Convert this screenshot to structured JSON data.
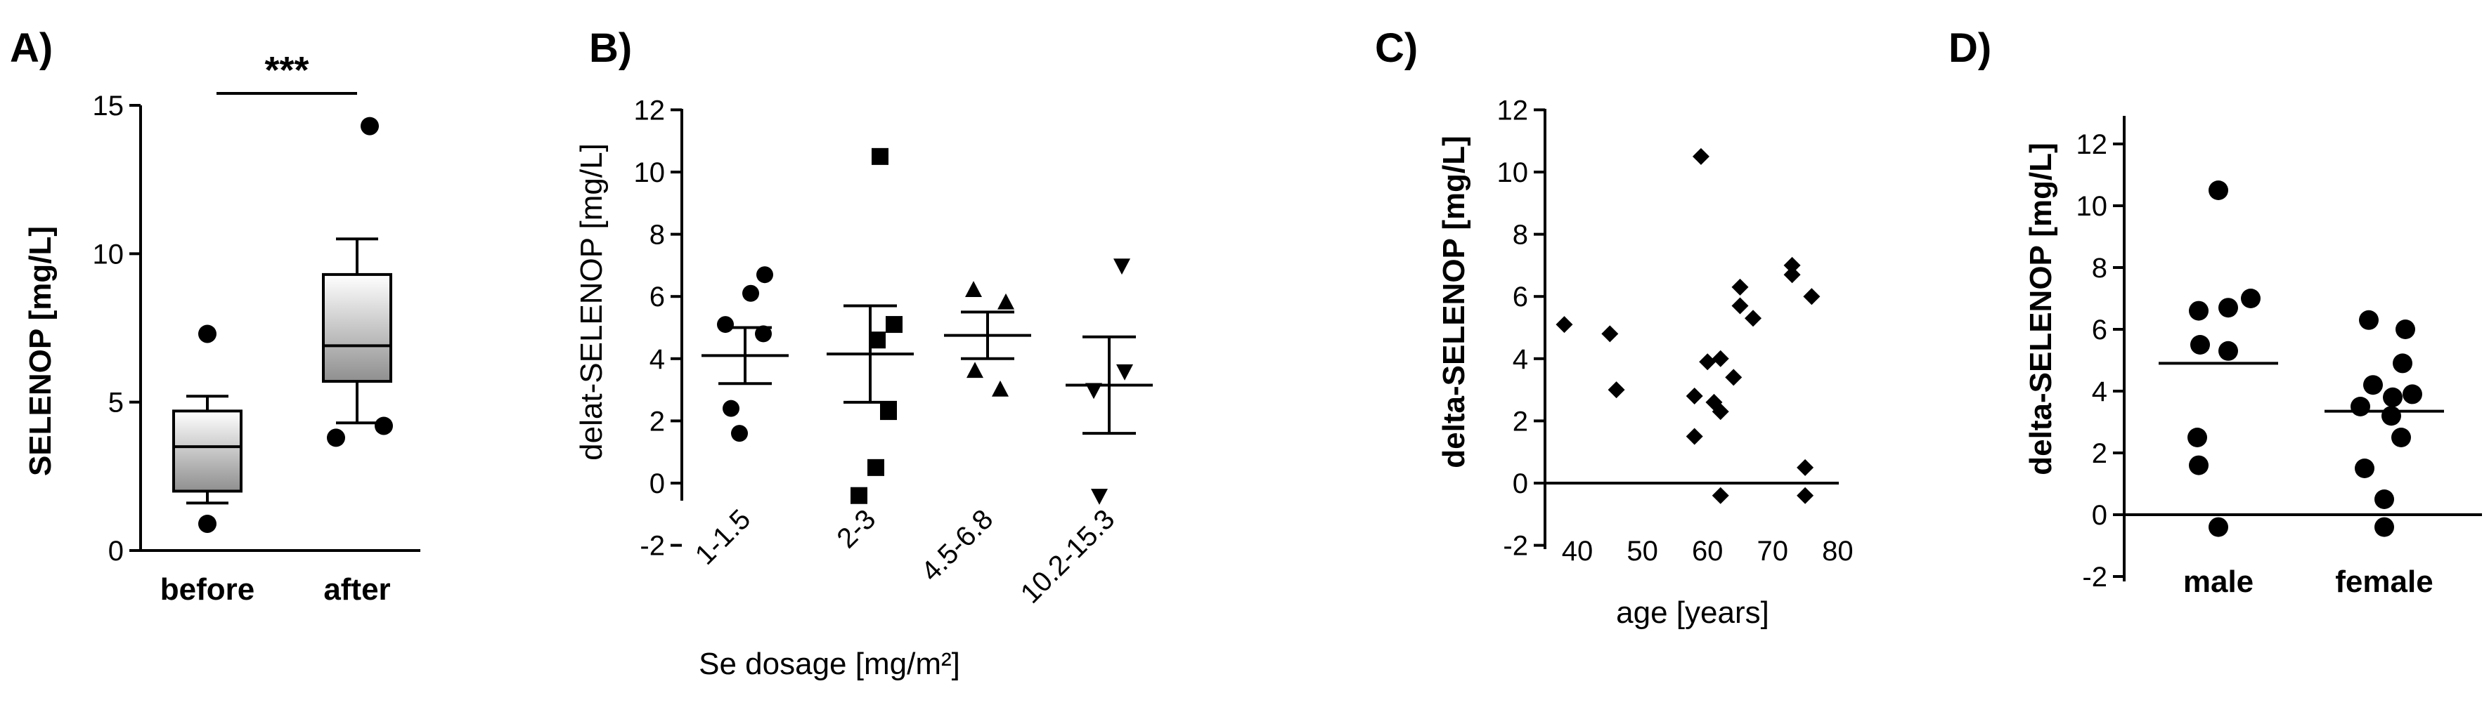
{
  "chart_data": [
    {
      "panel": "A)",
      "type": "box",
      "ylabel": "SELENOP [mg/L]",
      "ylim": [
        0,
        15
      ],
      "yticks": [
        "0",
        "5",
        "10",
        "15"
      ],
      "categories": [
        "before",
        "after"
      ],
      "boxes": [
        {
          "name": "before",
          "whisker_low": 1.6,
          "q1": 2.0,
          "median": 3.5,
          "q3": 4.7,
          "whisker_high": 5.2,
          "outliers": [
            7.3,
            0.9
          ]
        },
        {
          "name": "after",
          "whisker_low": 4.3,
          "q1": 5.7,
          "median": 6.9,
          "q3": 9.3,
          "whisker_high": 10.5,
          "outliers": [
            14.3,
            4.2,
            3.8
          ]
        }
      ],
      "significance": "***"
    },
    {
      "panel": "B)",
      "type": "scatter",
      "ylabel": "delat-SELENOP [mg/L]",
      "xlabel": "Se dosage [mg/m²]",
      "ylim": [
        -2,
        12
      ],
      "yticks": [
        "-2",
        "0",
        "2",
        "4",
        "6",
        "8",
        "10",
        "12"
      ],
      "categories": [
        "1-1.5",
        "2-3",
        "4.5-6.8",
        "10.2-15.3"
      ],
      "groups": [
        {
          "name": "1-1.5",
          "marker": "circle",
          "points": [
            6.7,
            6.1,
            5.1,
            4.8,
            2.4,
            1.6
          ],
          "mean": 4.1,
          "sem_low": 3.2,
          "sem_high": 5.0
        },
        {
          "name": "2-3",
          "marker": "square",
          "points": [
            10.5,
            5.1,
            4.6,
            2.3,
            0.5,
            -0.4
          ],
          "mean": 4.15,
          "sem_low": 2.6,
          "sem_high": 5.7
        },
        {
          "name": "4.5-6.8",
          "marker": "triangle-up",
          "points": [
            6.2,
            5.8,
            3.6,
            3.0
          ],
          "mean": 4.75,
          "sem_low": 4.0,
          "sem_high": 5.5
        },
        {
          "name": "10.2-15.3",
          "marker": "triangle-down",
          "points": [
            7.0,
            3.6,
            3.0,
            -0.4
          ],
          "mean": 3.15,
          "sem_low": 1.6,
          "sem_high": 4.7
        }
      ]
    },
    {
      "panel": "C)",
      "type": "scatter",
      "ylabel": "delta-SELENOP [mg/L]",
      "xlabel": "age [years]",
      "ylim": [
        -2,
        12
      ],
      "xlim": [
        36,
        82
      ],
      "yticks": [
        "-2",
        "0",
        "2",
        "4",
        "6",
        "8",
        "10",
        "12"
      ],
      "xticks": [
        "40",
        "50",
        "60",
        "70",
        "80"
      ],
      "points": [
        [
          38,
          5.1
        ],
        [
          45,
          4.8
        ],
        [
          46,
          3.0
        ],
        [
          58,
          2.8
        ],
        [
          58,
          1.5
        ],
        [
          59,
          10.5
        ],
        [
          60,
          3.9
        ],
        [
          61,
          2.6
        ],
        [
          62,
          4.0
        ],
        [
          62,
          2.3
        ],
        [
          62,
          -0.4
        ],
        [
          64,
          3.4
        ],
        [
          65,
          6.3
        ],
        [
          65,
          5.7
        ],
        [
          67,
          5.3
        ],
        [
          73,
          7.0
        ],
        [
          73,
          6.7
        ],
        [
          75,
          0.5
        ],
        [
          76,
          6.0
        ],
        [
          75,
          -0.4
        ]
      ]
    },
    {
      "panel": "D)",
      "type": "scatter",
      "ylabel": "delta-SELENOP [mg/L]",
      "ylim": [
        -2,
        12
      ],
      "yticks": [
        "-2",
        "0",
        "2",
        "4",
        "6",
        "8",
        "10",
        "12"
      ],
      "categories": [
        "male",
        "female"
      ],
      "groups": [
        {
          "name": "male",
          "marker": "circle",
          "points": [
            10.5,
            7.0,
            6.7,
            6.6,
            5.5,
            5.3,
            2.5,
            1.6,
            -0.4
          ],
          "mean": 4.9
        },
        {
          "name": "female",
          "marker": "circle",
          "points": [
            6.3,
            6.0,
            4.9,
            4.2,
            3.9,
            3.8,
            3.5,
            3.2,
            2.5,
            1.5,
            0.5,
            -0.4
          ],
          "mean": 3.35
        }
      ]
    }
  ]
}
